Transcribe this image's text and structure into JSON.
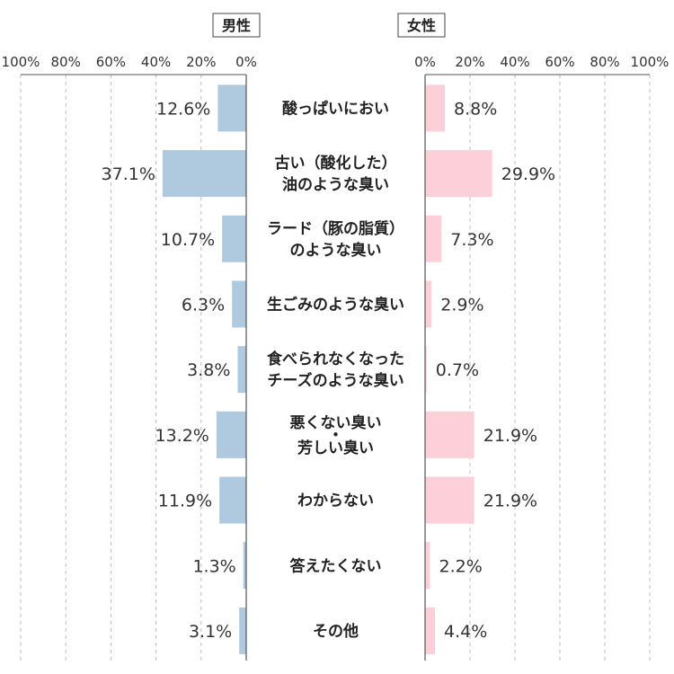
{
  "chart_data": {
    "type": "bar",
    "orientation": "horizontal-butterfly",
    "panels": [
      {
        "name": "男性",
        "direction": "left"
      },
      {
        "name": "女性",
        "direction": "right"
      }
    ],
    "axis_ticks": [
      "100%",
      "80%",
      "60%",
      "40%",
      "20%",
      "0%"
    ],
    "axis_ticks_right": [
      "0%",
      "20%",
      "40%",
      "60%",
      "80%",
      "100%"
    ],
    "xlim": [
      0,
      100
    ],
    "categories": [
      [
        "酸っぱいにおい"
      ],
      [
        "古い（酸化した）",
        "油のような臭い"
      ],
      [
        "ラード（豚の脂質）",
        "のような臭い"
      ],
      [
        "生ごみのような臭い"
      ],
      [
        "食べられなくなった",
        "チーズのような臭い"
      ],
      [
        "悪くない臭い",
        "・",
        "芳しい臭い"
      ],
      [
        "わからない"
      ],
      [
        "答えたくない"
      ],
      [
        "その他"
      ]
    ],
    "series": [
      {
        "name": "男性",
        "values": [
          12.6,
          37.1,
          10.7,
          6.3,
          3.8,
          13.2,
          11.9,
          1.3,
          3.1
        ],
        "labels": [
          "12.6%",
          "37.1%",
          "10.7%",
          "6.3%",
          "3.8%",
          "13.2%",
          "11.9%",
          "1.3%",
          "3.1%"
        ],
        "color": "#afc9de"
      },
      {
        "name": "女性",
        "values": [
          8.8,
          29.9,
          7.3,
          2.9,
          0.7,
          21.9,
          21.9,
          2.2,
          4.4
        ],
        "labels": [
          "8.8%",
          "29.9%",
          "7.3%",
          "2.9%",
          "0.7%",
          "21.9%",
          "21.9%",
          "2.2%",
          "4.4%"
        ],
        "color": "#fdd0d9"
      }
    ],
    "grid": true,
    "axis_color": "#555555",
    "grid_color": "#bbbbbb"
  }
}
